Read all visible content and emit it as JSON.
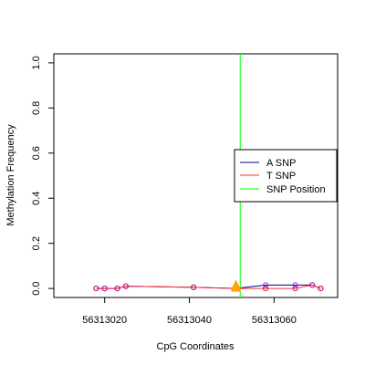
{
  "chart_data": {
    "type": "line",
    "xlabel": "CpG Coordinates",
    "ylabel": "Methylation Frequency",
    "xlim": [
      56313008,
      56313075
    ],
    "ylim": [
      -0.04,
      1.04
    ],
    "x_ticks": [
      56313020,
      56313040,
      56313060
    ],
    "x_tick_labels": [
      "56313020",
      "56313040",
      "56313060"
    ],
    "y_ticks": [
      0.0,
      0.2,
      0.4,
      0.6,
      0.8,
      1.0
    ],
    "y_tick_labels": [
      "0.0",
      "0.2",
      "0.4",
      "0.6",
      "0.8",
      "1.0"
    ],
    "grid": false,
    "legend_position": "right",
    "legend": [
      {
        "label": "A SNP",
        "color": "#00008B"
      },
      {
        "label": "T SNP",
        "color": "#FF3030"
      },
      {
        "label": "SNP Position",
        "color": "#00FF00"
      }
    ],
    "snp_position": 56313052,
    "snp_marker": {
      "x": 56313051,
      "y": 0.01,
      "color": "#FFA500"
    },
    "series": [
      {
        "color": "#00008B",
        "x": [
          56313018,
          56313020,
          56313023,
          56313025,
          56313041,
          56313051,
          56313058,
          56313065,
          56313069,
          56313071
        ],
        "y": [
          0.0,
          0.0,
          0.0,
          0.01,
          0.005,
          0.0,
          0.015,
          0.015,
          0.015,
          0.0
        ]
      },
      {
        "color": "#FF3030",
        "x": [
          56313018,
          56313020,
          56313023,
          56313025,
          56313041,
          56313051,
          56313058,
          56313065,
          56313069,
          56313071
        ],
        "y": [
          0.0,
          0.0,
          0.0,
          0.01,
          0.005,
          0.0,
          0.0,
          0.0,
          0.015,
          0.0
        ]
      }
    ]
  }
}
